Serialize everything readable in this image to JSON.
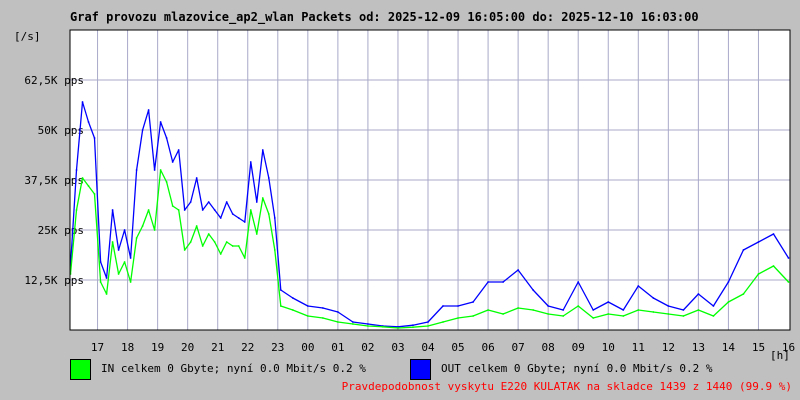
{
  "title": "Graf provozu mlazovice_ap2_wlan Packets od: 2025-12-09 16:05:00 do: 2025-12-10 16:03:00",
  "y_unit": "[/s]",
  "x_unit": "[h]",
  "colors": {
    "background": "#c0c0c0",
    "plot_background": "#ffffff",
    "grid": "#a9a9c9",
    "in_series": "#00ff00",
    "out_series": "#0000ff",
    "probability_text": "#ff0000"
  },
  "legend": {
    "in_label": "IN celkem 0 Gbyte; nyní    0.0 Mbit/s 0.2 %",
    "out_label": "OUT celkem 0 Gbyte; nyní    0.0 Mbit/s 0.2 %"
  },
  "probability_text": "Pravdepodobnost vyskytu E220 KULATAK na skladce 1439 z 1440 (99.9 %)",
  "chart_data": {
    "type": "line",
    "title": "Graf provozu mlazovice_ap2_wlan Packets od: 2025-12-09 16:05:00 do: 2025-12-10 16:03:00",
    "ylabel": "[/s]",
    "xlabel": "[h]",
    "ylim": [
      0,
      75000
    ],
    "xlim": [
      16.083,
      40.05
    ],
    "grid": true,
    "y_ticks": [
      {
        "value": 12500,
        "label": "12,5K pps"
      },
      {
        "value": 25000,
        "label": "25K pps"
      },
      {
        "value": 37500,
        "label": "37,5K pps"
      },
      {
        "value": 50000,
        "label": "50K pps"
      },
      {
        "value": 62500,
        "label": "62,5K pps"
      }
    ],
    "x_ticks": [
      {
        "value": 17,
        "label": "17"
      },
      {
        "value": 18,
        "label": "18"
      },
      {
        "value": 19,
        "label": "19"
      },
      {
        "value": 20,
        "label": "20"
      },
      {
        "value": 21,
        "label": "21"
      },
      {
        "value": 22,
        "label": "22"
      },
      {
        "value": 23,
        "label": "23"
      },
      {
        "value": 24,
        "label": "00"
      },
      {
        "value": 25,
        "label": "01"
      },
      {
        "value": 26,
        "label": "02"
      },
      {
        "value": 27,
        "label": "03"
      },
      {
        "value": 28,
        "label": "04"
      },
      {
        "value": 29,
        "label": "05"
      },
      {
        "value": 30,
        "label": "06"
      },
      {
        "value": 31,
        "label": "07"
      },
      {
        "value": 32,
        "label": "08"
      },
      {
        "value": 33,
        "label": "09"
      },
      {
        "value": 34,
        "label": "10"
      },
      {
        "value": 35,
        "label": "11"
      },
      {
        "value": 36,
        "label": "12"
      },
      {
        "value": 37,
        "label": "13"
      },
      {
        "value": 38,
        "label": "14"
      },
      {
        "value": 39,
        "label": "15"
      },
      {
        "value": 40,
        "label": "16"
      }
    ],
    "series": [
      {
        "name": "IN",
        "color": "#00ff00",
        "x": [
          16.1,
          16.3,
          16.5,
          16.7,
          16.9,
          17.1,
          17.3,
          17.5,
          17.7,
          17.9,
          18.1,
          18.3,
          18.5,
          18.7,
          18.9,
          19.1,
          19.3,
          19.5,
          19.7,
          19.9,
          20.1,
          20.3,
          20.5,
          20.7,
          20.9,
          21.1,
          21.3,
          21.5,
          21.7,
          21.9,
          22.1,
          22.3,
          22.5,
          22.7,
          22.9,
          23.1,
          23.5,
          24,
          24.5,
          25,
          25.5,
          26,
          26.5,
          27,
          27.5,
          28,
          28.5,
          29,
          29.5,
          30,
          30.5,
          31,
          31.5,
          32,
          32.5,
          33,
          33.5,
          34,
          34.5,
          35,
          35.5,
          36,
          36.5,
          37,
          37.5,
          38,
          38.5,
          39,
          39.5,
          40
        ],
        "values": [
          14000,
          30000,
          38000,
          36000,
          34000,
          12000,
          9000,
          22000,
          14000,
          17000,
          12000,
          23000,
          26000,
          30000,
          25000,
          40000,
          37000,
          31000,
          30000,
          20000,
          22000,
          26000,
          21000,
          24000,
          22000,
          19000,
          22000,
          21000,
          21000,
          18000,
          30000,
          24000,
          33000,
          29000,
          20000,
          6000,
          5000,
          3500,
          3000,
          2000,
          1500,
          1000,
          800,
          500,
          700,
          1000,
          2000,
          3000,
          3500,
          5000,
          4000,
          5500,
          5000,
          4000,
          3500,
          6000,
          3000,
          4000,
          3500,
          5000,
          4500,
          4000,
          3500,
          5000,
          3500,
          7000,
          9000,
          14000,
          16000,
          12000
        ]
      },
      {
        "name": "OUT",
        "color": "#0000ff",
        "x": [
          16.1,
          16.3,
          16.5,
          16.7,
          16.9,
          17.1,
          17.3,
          17.5,
          17.7,
          17.9,
          18.1,
          18.3,
          18.5,
          18.7,
          18.9,
          19.1,
          19.3,
          19.5,
          19.7,
          19.9,
          20.1,
          20.3,
          20.5,
          20.7,
          20.9,
          21.1,
          21.3,
          21.5,
          21.7,
          21.9,
          22.1,
          22.3,
          22.5,
          22.7,
          22.9,
          23.1,
          23.5,
          24,
          24.5,
          25,
          25.5,
          26,
          26.5,
          27,
          27.5,
          28,
          28.5,
          29,
          29.5,
          30,
          30.5,
          31,
          31.5,
          32,
          32.5,
          33,
          33.5,
          34,
          34.5,
          35,
          35.5,
          36,
          36.5,
          37,
          37.5,
          38,
          38.5,
          39,
          39.5,
          40
        ],
        "values": [
          16000,
          40000,
          57000,
          52000,
          48000,
          17000,
          13000,
          30000,
          20000,
          25000,
          18000,
          40000,
          50000,
          55000,
          40000,
          52000,
          48000,
          42000,
          45000,
          30000,
          32000,
          38000,
          30000,
          32000,
          30000,
          28000,
          32000,
          29000,
          28000,
          27000,
          42000,
          32000,
          45000,
          38000,
          28000,
          10000,
          8000,
          6000,
          5500,
          4500,
          2000,
          1500,
          1000,
          800,
          1200,
          2000,
          6000,
          6000,
          7000,
          12000,
          12000,
          15000,
          10000,
          6000,
          5000,
          12000,
          5000,
          7000,
          5000,
          11000,
          8000,
          6000,
          5000,
          9000,
          6000,
          12000,
          20000,
          22000,
          24000,
          18000
        ]
      }
    ]
  }
}
